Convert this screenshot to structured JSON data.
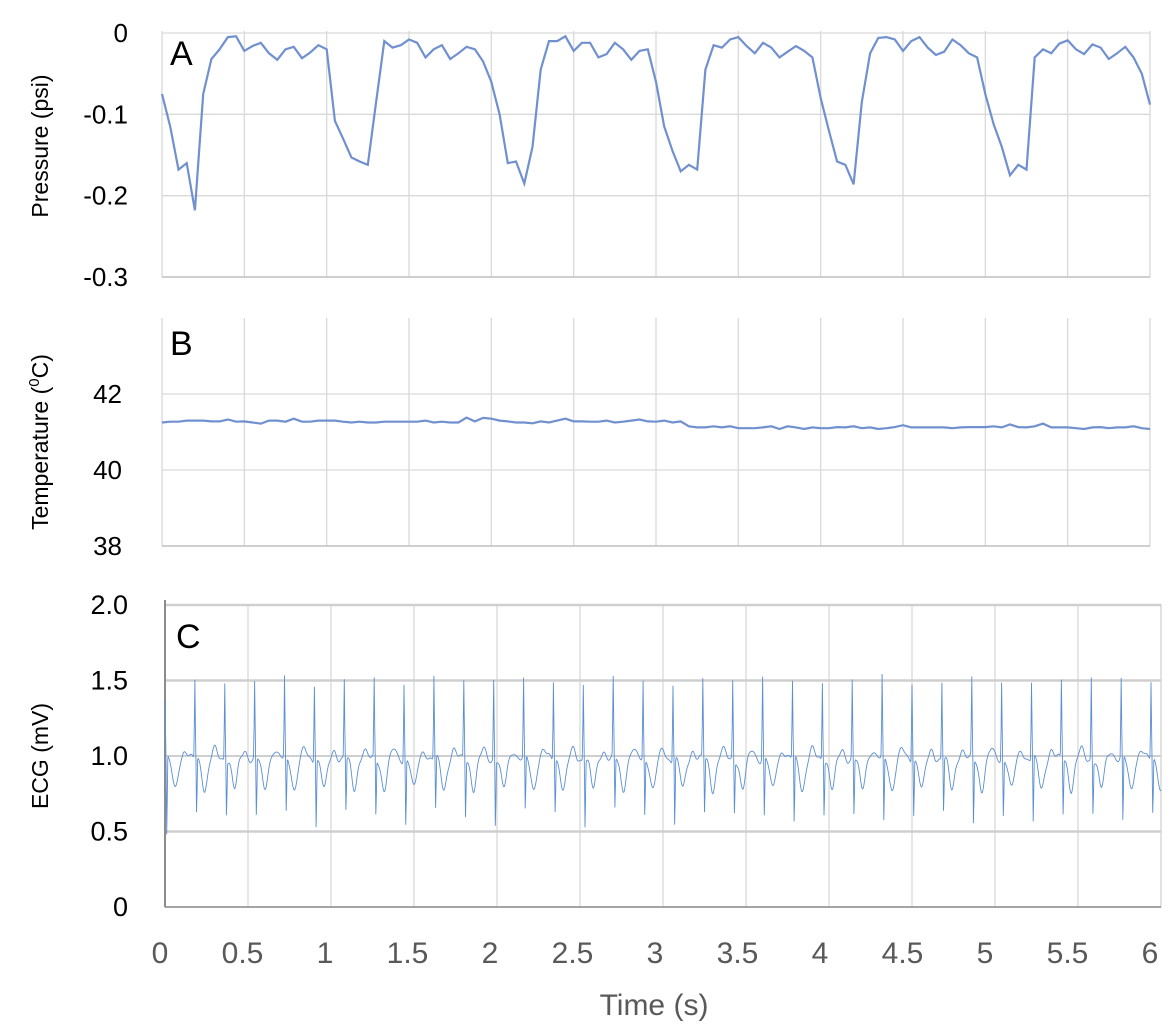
{
  "chart_data": [
    {
      "panel_label": "A",
      "type": "line",
      "ylabel": "Pressure (psi)",
      "ylim": [
        -0.3,
        0
      ],
      "yticks": [
        0,
        -0.1,
        -0.2,
        -0.3
      ],
      "ytick_labels": [
        "0",
        "-0.1",
        "-0.2",
        "-0.3"
      ],
      "xlim": [
        0,
        6
      ],
      "grid": true,
      "line_color": "#7090d0",
      "series": [
        {
          "x": [
            0,
            0.05,
            0.1,
            0.15,
            0.2,
            0.25,
            0.3,
            0.35,
            0.4,
            0.45,
            0.5,
            0.55,
            0.6,
            0.65,
            0.7,
            0.75,
            0.8,
            0.85,
            0.9,
            0.95,
            1.0,
            1.05,
            1.1,
            1.15,
            1.2,
            1.25,
            1.3,
            1.35,
            1.4,
            1.45,
            1.5,
            1.55,
            1.6,
            1.65,
            1.7,
            1.75,
            1.8,
            1.85,
            1.9,
            1.95,
            2.0,
            2.05,
            2.1,
            2.15,
            2.2,
            2.25,
            2.3,
            2.35,
            2.4,
            2.45,
            2.5,
            2.55,
            2.6,
            2.65,
            2.7,
            2.75,
            2.8,
            2.85,
            2.9,
            2.95,
            3.0,
            3.05,
            3.1,
            3.15,
            3.2,
            3.25,
            3.3,
            3.35,
            3.4,
            3.45,
            3.5,
            3.55,
            3.6,
            3.65,
            3.7,
            3.75,
            3.8,
            3.85,
            3.9,
            3.95,
            4.0,
            4.05,
            4.1,
            4.15,
            4.2,
            4.25,
            4.3,
            4.35,
            4.4,
            4.45,
            4.5,
            4.55,
            4.6,
            4.65,
            4.7,
            4.75,
            4.8,
            4.85,
            4.9,
            4.95,
            5.0,
            5.05,
            5.1,
            5.15,
            5.2,
            5.25,
            5.3,
            5.35,
            5.4,
            5.45,
            5.5,
            5.55,
            5.6,
            5.65,
            5.7,
            5.75,
            5.8,
            5.85,
            5.9,
            5.95,
            6.0
          ],
          "values": [
            -0.075,
            -0.115,
            -0.168,
            -0.16,
            -0.218,
            -0.075,
            -0.032,
            -0.02,
            -0.005,
            -0.004,
            -0.022,
            -0.016,
            -0.012,
            -0.025,
            -0.033,
            -0.02,
            -0.017,
            -0.031,
            -0.024,
            -0.015,
            -0.02,
            -0.108,
            -0.13,
            -0.153,
            -0.158,
            -0.162,
            -0.085,
            -0.01,
            -0.018,
            -0.015,
            -0.008,
            -0.012,
            -0.03,
            -0.02,
            -0.015,
            -0.032,
            -0.025,
            -0.017,
            -0.02,
            -0.035,
            -0.06,
            -0.1,
            -0.16,
            -0.158,
            -0.185,
            -0.14,
            -0.045,
            -0.01,
            -0.01,
            -0.004,
            -0.022,
            -0.012,
            -0.012,
            -0.03,
            -0.026,
            -0.012,
            -0.02,
            -0.033,
            -0.022,
            -0.02,
            -0.06,
            -0.115,
            -0.145,
            -0.17,
            -0.162,
            -0.168,
            -0.045,
            -0.015,
            -0.018,
            -0.008,
            -0.005,
            -0.016,
            -0.025,
            -0.012,
            -0.018,
            -0.03,
            -0.023,
            -0.016,
            -0.022,
            -0.03,
            -0.08,
            -0.12,
            -0.158,
            -0.162,
            -0.186,
            -0.085,
            -0.025,
            -0.006,
            -0.005,
            -0.008,
            -0.022,
            -0.01,
            -0.005,
            -0.018,
            -0.027,
            -0.023,
            -0.008,
            -0.015,
            -0.025,
            -0.03,
            -0.075,
            -0.112,
            -0.14,
            -0.175,
            -0.162,
            -0.168,
            -0.03,
            -0.02,
            -0.025,
            -0.013,
            -0.009,
            -0.02,
            -0.026,
            -0.014,
            -0.018,
            -0.032,
            -0.025,
            -0.017,
            -0.03,
            -0.05,
            -0.088
          ]
        }
      ]
    },
    {
      "panel_label": "B",
      "type": "line",
      "ylabel_main": "Temperature (",
      "ylabel_sup": "0",
      "ylabel_tail": "C)",
      "ylim": [
        38,
        44
      ],
      "yticks": [
        38,
        40,
        42
      ],
      "ytick_labels": [
        "38",
        "40",
        "42"
      ],
      "xlim": [
        0,
        6
      ],
      "grid": true,
      "line_color": "#7090d0",
      "series": [
        {
          "x": [
            0,
            0.05,
            0.1,
            0.15,
            0.2,
            0.25,
            0.3,
            0.35,
            0.4,
            0.45,
            0.5,
            0.55,
            0.6,
            0.65,
            0.7,
            0.75,
            0.8,
            0.85,
            0.9,
            0.95,
            1.0,
            1.05,
            1.1,
            1.15,
            1.2,
            1.25,
            1.3,
            1.35,
            1.4,
            1.45,
            1.5,
            1.55,
            1.6,
            1.65,
            1.7,
            1.75,
            1.8,
            1.85,
            1.9,
            1.95,
            2.0,
            2.05,
            2.1,
            2.15,
            2.2,
            2.25,
            2.3,
            2.35,
            2.4,
            2.45,
            2.5,
            2.55,
            2.6,
            2.65,
            2.7,
            2.75,
            2.8,
            2.85,
            2.9,
            2.95,
            3.0,
            3.05,
            3.1,
            3.15,
            3.2,
            3.25,
            3.3,
            3.35,
            3.4,
            3.45,
            3.5,
            3.55,
            3.6,
            3.65,
            3.7,
            3.75,
            3.8,
            3.85,
            3.9,
            3.95,
            4.0,
            4.05,
            4.1,
            4.15,
            4.2,
            4.25,
            4.3,
            4.35,
            4.4,
            4.45,
            4.5,
            4.55,
            4.6,
            4.65,
            4.7,
            4.75,
            4.8,
            4.85,
            4.9,
            4.95,
            5.0,
            5.05,
            5.1,
            5.15,
            5.2,
            5.25,
            5.3,
            5.35,
            5.4,
            5.45,
            5.5,
            5.55,
            5.6,
            5.65,
            5.7,
            5.75,
            5.8,
            5.85,
            5.9,
            5.95,
            6.0
          ],
          "values": [
            41.25,
            41.27,
            41.27,
            41.3,
            41.3,
            41.3,
            41.28,
            41.28,
            41.33,
            41.27,
            41.28,
            41.25,
            41.22,
            41.3,
            41.3,
            41.27,
            41.35,
            41.27,
            41.27,
            41.3,
            41.3,
            41.3,
            41.27,
            41.25,
            41.27,
            41.25,
            41.25,
            41.27,
            41.27,
            41.27,
            41.27,
            41.27,
            41.3,
            41.25,
            41.27,
            41.25,
            41.25,
            41.38,
            41.28,
            41.37,
            41.35,
            41.3,
            41.28,
            41.25,
            41.25,
            41.23,
            41.28,
            41.25,
            41.3,
            41.35,
            41.28,
            41.28,
            41.27,
            41.27,
            41.3,
            41.25,
            41.27,
            41.3,
            41.33,
            41.28,
            41.27,
            41.3,
            41.25,
            41.28,
            41.15,
            41.12,
            41.12,
            41.15,
            41.12,
            41.15,
            41.1,
            41.1,
            41.1,
            41.12,
            41.15,
            41.08,
            41.15,
            41.12,
            41.08,
            41.12,
            41.1,
            41.1,
            41.13,
            41.12,
            41.15,
            41.1,
            41.12,
            41.08,
            41.1,
            41.13,
            41.18,
            41.12,
            41.12,
            41.12,
            41.12,
            41.12,
            41.1,
            41.12,
            41.13,
            41.13,
            41.13,
            41.15,
            41.12,
            41.2,
            41.13,
            41.12,
            41.15,
            41.22,
            41.12,
            41.12,
            41.12,
            41.1,
            41.08,
            41.12,
            41.13,
            41.1,
            41.12,
            41.12,
            41.15,
            41.1,
            41.08
          ]
        }
      ]
    },
    {
      "panel_label": "C",
      "type": "line",
      "ylabel": "ECG (mV)",
      "ylim": [
        0,
        2.0
      ],
      "yticks": [
        0,
        0.5,
        1.0,
        1.5,
        2.0
      ],
      "ytick_labels": [
        "0",
        "0.5",
        "1.0",
        "1.5",
        "2.0"
      ],
      "xlim": [
        0,
        6
      ],
      "xticks": [
        0,
        0.5,
        1,
        1.5,
        2,
        2.5,
        3,
        3.5,
        4,
        4.5,
        5,
        5.5,
        6
      ],
      "xtick_labels": [
        "0",
        "0.5",
        "1",
        "1.5",
        "2",
        "2.5",
        "3",
        "3.5",
        "4",
        "4.5",
        "5",
        "5.5",
        "6"
      ],
      "xlabel": "Time (s)",
      "grid": true,
      "line_color": "#5b8fd4",
      "beat_times": [
        0.0,
        0.18,
        0.36,
        0.54,
        0.72,
        0.9,
        1.08,
        1.26,
        1.44,
        1.62,
        1.8,
        1.98,
        2.16,
        2.34,
        2.52,
        2.7,
        2.88,
        3.06,
        3.24,
        3.42,
        3.6,
        3.78,
        3.96,
        4.14,
        4.32,
        4.5,
        4.68,
        4.86,
        5.04,
        5.22,
        5.4,
        5.58,
        5.76,
        5.94
      ],
      "r_peak_values": [
        1.37,
        1.5,
        1.5,
        1.48,
        1.52,
        1.49,
        1.5,
        1.5,
        1.49,
        1.53,
        1.5,
        1.51,
        1.5,
        1.5,
        1.49,
        1.5,
        1.5,
        1.49,
        1.5,
        1.5,
        1.53,
        1.49,
        1.5,
        1.5,
        1.52,
        1.5,
        1.49,
        1.5,
        1.5,
        1.49,
        1.5,
        1.53,
        1.5,
        1.49
      ],
      "s_trough_values": [
        0.4,
        0.58,
        0.6,
        0.55,
        0.58,
        0.5,
        0.6,
        0.57,
        0.5,
        0.6,
        0.57,
        0.5,
        0.58,
        0.6,
        0.5,
        0.6,
        0.57,
        0.5,
        0.58,
        0.6,
        0.55,
        0.5,
        0.6,
        0.57,
        0.5,
        0.58,
        0.6,
        0.5,
        0.57,
        0.5,
        0.58,
        0.6,
        0.5,
        0.58
      ],
      "baseline_value": 0.98
    }
  ]
}
